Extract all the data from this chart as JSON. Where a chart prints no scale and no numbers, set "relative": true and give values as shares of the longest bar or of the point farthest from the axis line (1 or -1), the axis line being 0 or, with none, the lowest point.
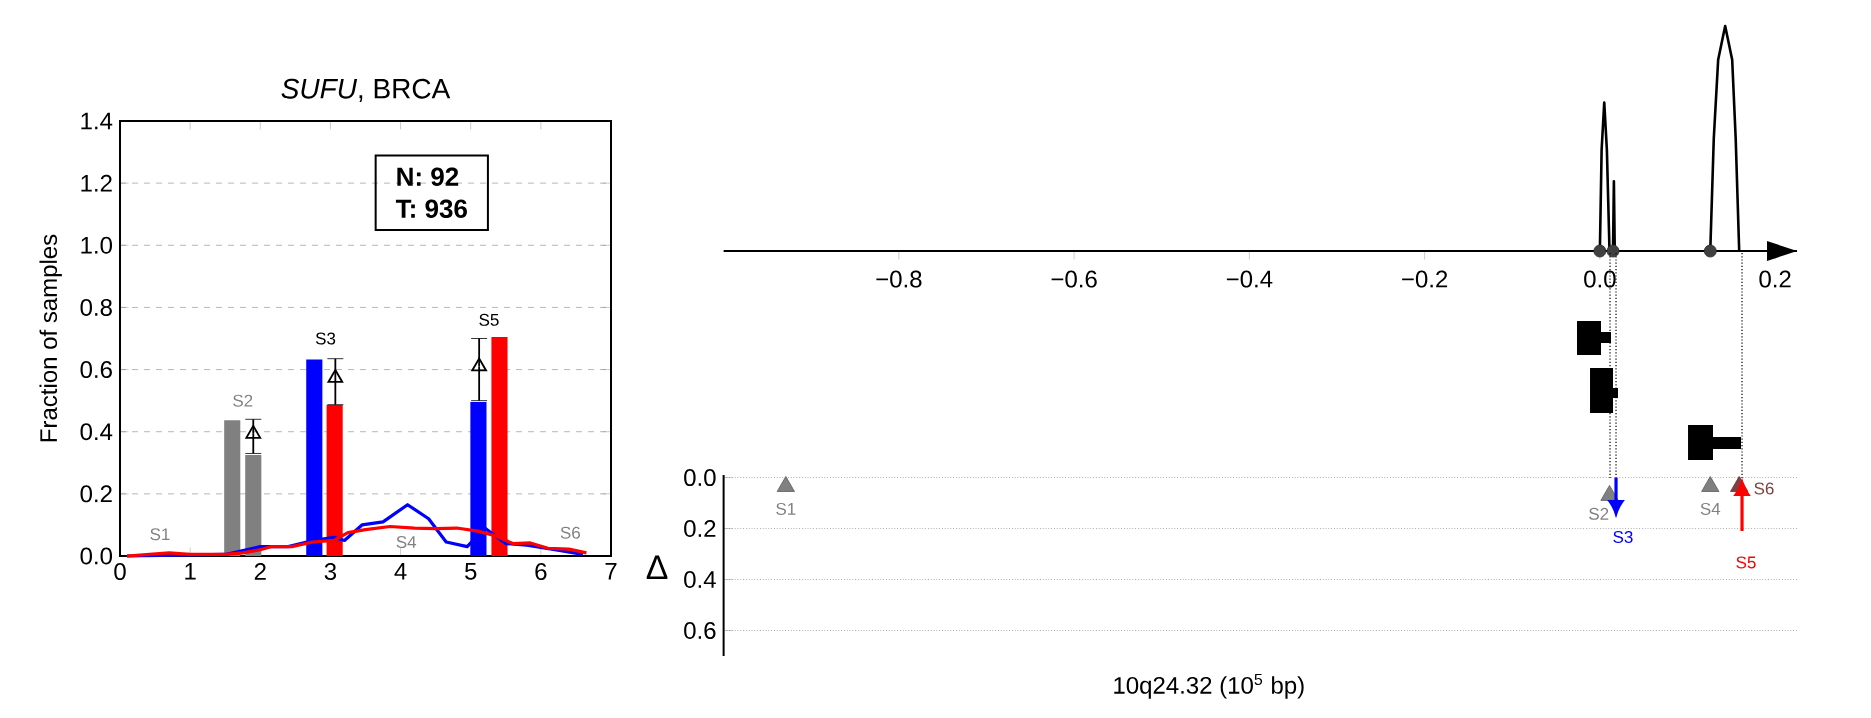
{
  "chart_data": [
    {
      "type": "bar",
      "title": "*SUFU*, BRCA",
      "ylabel": "Fraction of samples",
      "xlim": [
        0,
        7
      ],
      "ylim": [
        0,
        1.4
      ],
      "xticks": [
        0,
        1,
        2,
        3,
        4,
        5,
        6,
        7
      ],
      "yticks": [
        {
          "value": 0,
          "label": "0.0"
        },
        {
          "value": 0.2,
          "label": "0.2"
        },
        {
          "value": 0.4,
          "label": "0.4"
        },
        {
          "value": 0.6,
          "label": "0.6"
        },
        {
          "value": 0.8,
          "label": "0.8"
        },
        {
          "value": 1.0,
          "label": "1.0"
        },
        {
          "value": 1.2,
          "label": "1.2"
        },
        {
          "value": 1.4,
          "label": "1.4"
        }
      ],
      "grid": "y",
      "annotations": [
        "N: 92",
        "T: 936",
        "S1",
        "S2",
        "S3",
        "S4",
        "S5",
        "S6"
      ],
      "series": [
        {
          "type": "bar",
          "color": "#808080",
          "x": [
            1.6,
            1.9
          ],
          "values": [
            0.437,
            0.325
          ]
        },
        {
          "type": "bar",
          "color": "#0000ff",
          "x": [
            2.77,
            5.11
          ],
          "values": [
            0.632,
            0.496
          ]
        },
        {
          "type": "bar",
          "color": "#ff0000",
          "x": [
            3.06,
            5.41
          ],
          "values": [
            0.486,
            0.705
          ]
        },
        {
          "type": "line",
          "color": "#0000ff",
          "x": [
            0.1,
            1.5,
            2.0,
            2.4,
            2.75,
            3.05,
            3.2,
            3.45,
            3.75,
            4.1,
            4.4,
            4.65,
            4.95,
            5.2,
            5.5,
            5.8,
            6.2,
            6.6
          ],
          "values": [
            0,
            0.005,
            0.03,
            0.03,
            0.05,
            0.06,
            0.05,
            0.1,
            0.11,
            0.165,
            0.12,
            0.045,
            0.03,
            0.09,
            0.04,
            0.035,
            0.02,
            0.005
          ]
        },
        {
          "type": "line",
          "color": "#ff0000",
          "x": [
            0.1,
            0.7,
            1.0,
            1.5,
            1.75,
            2.0,
            2.15,
            2.45,
            2.75,
            3.05,
            3.25,
            3.5,
            3.85,
            4.2,
            4.5,
            4.8,
            5.1,
            5.35,
            5.6,
            5.85,
            6.1,
            6.4,
            6.65
          ],
          "values": [
            0,
            0.01,
            0.005,
            0.005,
            0.01,
            0.02,
            0.03,
            0.03,
            0.045,
            0.05,
            0.075,
            0.085,
            0.095,
            0.09,
            0.088,
            0.09,
            0.08,
            0.065,
            0.04,
            0.042,
            0.025,
            0.022,
            0.01
          ]
        },
        {
          "type": "scatter",
          "color": "#000000",
          "marker": "triangle",
          "x": [
            1.9,
            3.07,
            5.12
          ],
          "values": [
            0.393,
            0.573,
            0.61
          ],
          "errors": [
            [
              0.33,
              0.44
            ],
            [
              0.487,
              0.635
            ],
            [
              0.5,
              0.7
            ]
          ]
        }
      ]
    },
    {
      "type": "line",
      "relative": true,
      "xlim": [
        -1.0,
        0.225
      ],
      "xticks": [
        {
          "value": -0.8,
          "label": "−0.8"
        },
        {
          "value": -0.6,
          "label": "−0.6"
        },
        {
          "value": -0.4,
          "label": "−0.4"
        },
        {
          "value": -0.2,
          "label": "−0.2"
        },
        {
          "value": 0,
          "label": "0.0"
        },
        {
          "value": 0.2,
          "label": "0.2"
        }
      ],
      "tick_labels": "x",
      "series": [
        {
          "type": "line",
          "color": "#000000",
          "x": [
            0,
            0.002,
            0.005,
            0.008,
            0.011
          ],
          "values": [
            0,
            0.45,
            0.66,
            0.45,
            0
          ]
        },
        {
          "type": "line",
          "color": "#000000",
          "x": [
            0.015,
            0.016,
            0.017
          ],
          "values": [
            0,
            0.31,
            0
          ]
        },
        {
          "type": "line",
          "color": "#000000",
          "x": [
            0.126,
            0.13,
            0.135,
            0.143,
            0.151,
            0.155,
            0.159
          ],
          "values": [
            0,
            0.5,
            0.85,
            1,
            0.85,
            0.5,
            0
          ]
        },
        {
          "type": "scatter",
          "color": "#404040",
          "marker": "circle",
          "x": [
            0,
            0.015,
            0.126
          ],
          "values": [
            0,
            0,
            0
          ]
        }
      ]
    },
    {
      "type": "scatter",
      "xlabel": "10q24.32 (10$^{5}$ bp)",
      "ylabel": "Δ",
      "xlim": [
        -1.0,
        0.225
      ],
      "ylim": [
        0.7,
        -0.01
      ],
      "yticks": [
        {
          "value": 0,
          "label": "0.0"
        },
        {
          "value": 0.2,
          "label": "0.2"
        },
        {
          "value": 0.4,
          "label": "0.4"
        },
        {
          "value": 0.6,
          "label": "0.6"
        }
      ],
      "tick_labels": "y",
      "grid": "y",
      "annotations": [
        "S3",
        "S5"
      ],
      "series": [
        {
          "name": "S1",
          "type": "scatter",
          "marker": "triangle",
          "color": "#808080",
          "x": [
            -0.929
          ],
          "values": [
            0.035
          ]
        },
        {
          "name": "S2",
          "type": "scatter",
          "marker": "triangle",
          "color": "#808080",
          "x": [
            0.011
          ],
          "values": [
            0.07
          ]
        },
        {
          "name": "S4",
          "type": "scatter",
          "marker": "triangle",
          "color": "#808080",
          "x": [
            0.126
          ],
          "values": [
            0.035
          ]
        },
        {
          "name": "S6",
          "type": "scatter",
          "marker": "triangle",
          "color": "#804040",
          "x": [
            0.159
          ],
          "values": [
            0.035
          ]
        }
      ]
    }
  ]
}
